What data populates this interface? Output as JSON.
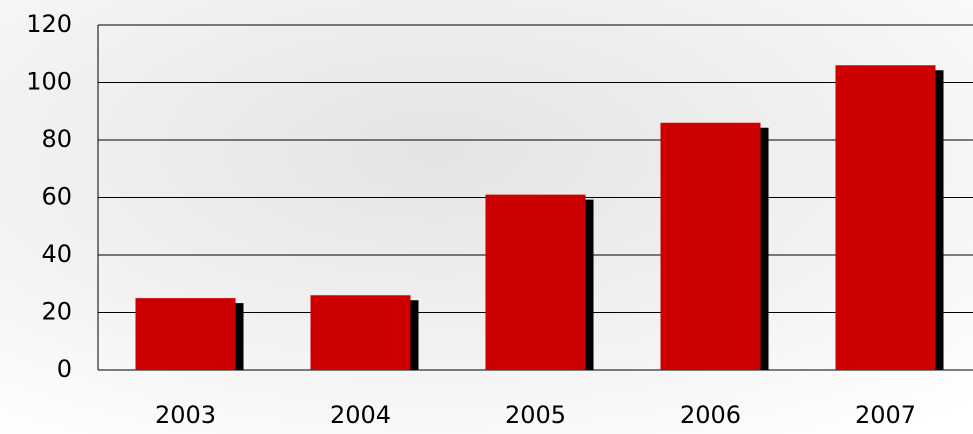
{
  "chart_data": {
    "type": "bar",
    "categories": [
      "2003",
      "2004",
      "2005",
      "2006",
      "2007"
    ],
    "values": [
      25,
      26,
      61,
      86,
      106
    ],
    "color": "#cc0000",
    "ylim": [
      0,
      120
    ],
    "yticks": [
      0,
      20,
      40,
      60,
      80,
      100,
      120
    ],
    "grid": true
  }
}
